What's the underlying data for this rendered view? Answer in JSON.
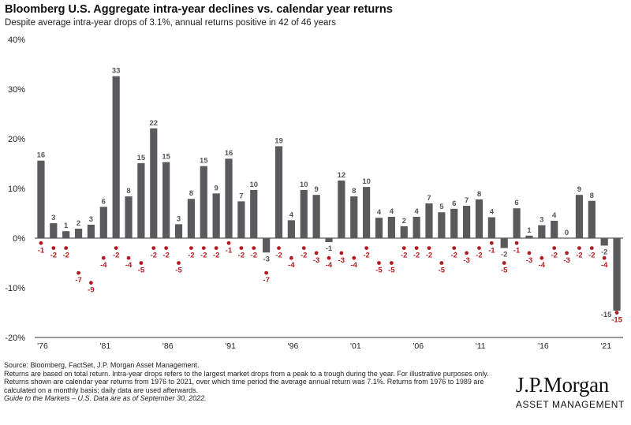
{
  "title": "Bloomberg U.S. Aggregate intra-year declines vs. calendar year returns",
  "subtitle": "Despite average intra-year drops of 3.1%, annual returns positive in 42 of 46 years",
  "footnotes": {
    "line1": "Source: Bloomberg, FactSet, J.P. Morgan Asset Management.",
    "line2": "Returns are based on total return. Intra-year drops refers to the largest market drops from a peak to a trough during the year. For illustrative purposes only. Returns shown are calendar year returns from 1976 to 2021, over which time period the average annual return was 7.1%. Returns from 1976 to 1989 are calculated on a monthly basis; daily data are used afterwards.",
    "line3": "Guide to the Markets – U.S. Data are as of September 30, 2022."
  },
  "logo": {
    "name": "J.P.Morgan",
    "sub": "ASSET MANAGEMENT"
  },
  "colors": {
    "bar": "#595a5c",
    "drop": "#b01c22",
    "axis": "#333333"
  },
  "chart_data": {
    "type": "bar",
    "ylim": [
      -20,
      40
    ],
    "yticks": [
      40,
      30,
      20,
      10,
      0,
      -10,
      -20
    ],
    "ytick_labels": [
      "40%",
      "30%",
      "20%",
      "10%",
      "0%",
      "-10%",
      "-20%"
    ],
    "xtick_labels": [
      {
        "index": 0,
        "label": "'76"
      },
      {
        "index": 5,
        "label": "'81"
      },
      {
        "index": 10,
        "label": "'86"
      },
      {
        "index": 15,
        "label": "'91"
      },
      {
        "index": 20,
        "label": "'96"
      },
      {
        "index": 25,
        "label": "'01"
      },
      {
        "index": 30,
        "label": "'06"
      },
      {
        "index": 35,
        "label": "'11"
      },
      {
        "index": 40,
        "label": "'16"
      },
      {
        "index": 45,
        "label": "'21"
      }
    ],
    "annual_returns": [
      15.6,
      3.0,
      1.4,
      1.9,
      2.7,
      6.3,
      32.6,
      8.4,
      15.1,
      22.1,
      15.3,
      2.8,
      7.9,
      14.5,
      9.0,
      16.0,
      7.4,
      9.7,
      -2.9,
      18.5,
      3.6,
      9.7,
      8.7,
      -0.8,
      11.6,
      8.4,
      10.3,
      4.1,
      4.3,
      2.4,
      4.3,
      7.0,
      5.2,
      5.9,
      6.5,
      7.8,
      4.2,
      -2.0,
      6.0,
      0.5,
      2.6,
      3.5,
      0.0,
      8.7,
      7.5,
      -1.5
    ],
    "annual_labels": [
      "16",
      "3",
      "1",
      "2",
      "3",
      "6",
      "33",
      "8",
      "15",
      "22",
      "15",
      "3",
      "8",
      "15",
      "9",
      "16",
      "7",
      "10",
      "-3",
      "19",
      "4",
      "10",
      "9",
      "-1",
      "12",
      "8",
      "10",
      "4",
      "4",
      "2",
      "4",
      "7",
      "5",
      "6",
      "7",
      "8",
      "4",
      "-2",
      "6",
      "1",
      "3",
      "4",
      "0",
      "9",
      "8",
      "-2"
    ],
    "ytd_return": -14.6,
    "ytd_label": "-15",
    "intra_year_drops": [
      -1,
      -2,
      -2,
      -7,
      -9,
      -4,
      -2,
      -4,
      -5,
      -2,
      -2,
      -5,
      -2,
      -2,
      -2,
      -1,
      -2,
      -2,
      -7,
      -2,
      -4,
      -2,
      -3,
      -4,
      -3,
      -4,
      -2,
      -5,
      -5,
      -2,
      -2,
      -2,
      -5,
      -2,
      -3,
      -2,
      -1,
      -5,
      -1,
      -3,
      -4,
      -2,
      -3,
      -2,
      -2,
      -4,
      -15
    ],
    "intra_year_labels": [
      "-1",
      "-2",
      "-2",
      "-7",
      "-9",
      "-4",
      "-2",
      "-4",
      "-5",
      "-2",
      "-2",
      "-5",
      "-2",
      "-2",
      "-2",
      "-1",
      "-2",
      "-2",
      "-7",
      "-2",
      "-4",
      "-2",
      "-3",
      "-4",
      "-3",
      "-4",
      "-2",
      "-5",
      "-5",
      "-2",
      "-2",
      "-2",
      "-5",
      "-2",
      "-3",
      "-2",
      "-1",
      "-5",
      "-1",
      "-3",
      "-4",
      "-2",
      "-3",
      "-2",
      "-2",
      "-4",
      "-15"
    ]
  }
}
